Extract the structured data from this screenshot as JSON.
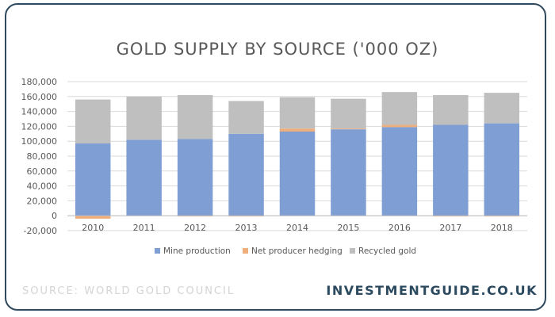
{
  "colors": {
    "mine": "#7e9ed4",
    "hedging": "#efaf7c",
    "recycled": "#bfbfbf",
    "frame": "#2f4a5e",
    "brand": "#2c4a5f"
  },
  "footer": {
    "source": "SOURCE: WORLD GOLD COUNCIL",
    "brand": "INVESTMENTGUIDE.CO.UK"
  },
  "chart_data": {
    "type": "bar",
    "stacked": true,
    "title": "GOLD SUPPLY BY SOURCE ('000 OZ)",
    "categories": [
      "2010",
      "2011",
      "2012",
      "2013",
      "2014",
      "2015",
      "2016",
      "2017",
      "2018"
    ],
    "series": [
      {
        "name": "Mine production",
        "color": "#7e9ed4",
        "values": [
          97000,
          102000,
          103000,
          110000,
          113000,
          116000,
          119000,
          122000,
          124000
        ]
      },
      {
        "name": "Net producer hedging",
        "color": "#efaf7c",
        "values": [
          -4000,
          0,
          -1000,
          -1000,
          4000,
          1000,
          3000,
          -1000,
          -1000
        ]
      },
      {
        "name": "Recycled gold",
        "color": "#bfbfbf",
        "values": [
          59000,
          58000,
          59000,
          44000,
          42000,
          40000,
          44000,
          40000,
          41000
        ]
      }
    ],
    "ylim": [
      -20000,
      180000
    ],
    "yticks": [
      "-20,000",
      "0",
      "20,000",
      "40,000",
      "60,000",
      "80,000",
      "100,000",
      "120,000",
      "140,000",
      "160,000",
      "180,000"
    ],
    "ytick_values": [
      -20000,
      0,
      20000,
      40000,
      60000,
      80000,
      100000,
      120000,
      140000,
      160000,
      180000
    ],
    "grid": true,
    "legend": "bottom"
  }
}
